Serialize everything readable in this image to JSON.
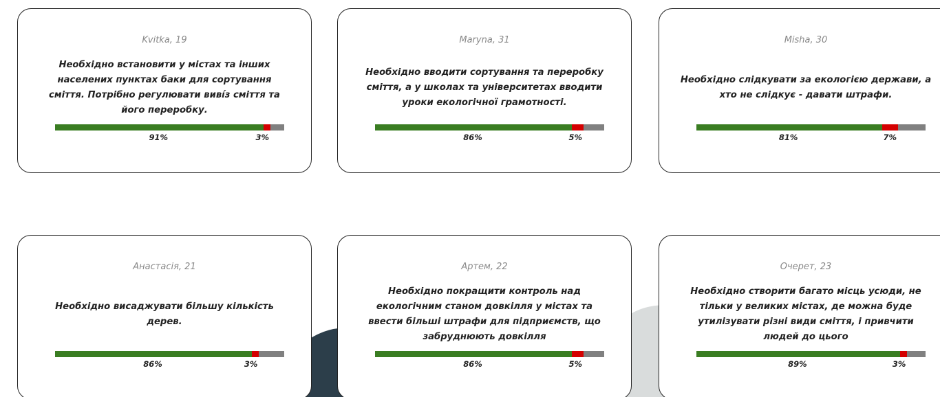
{
  "cards": [
    {
      "name": "Kvitka, 19",
      "quote": "Необхідно встановити у містах та інших населених пунктах баки для сортування сміття. Потрібно регулювати виві́з сміття та його переробку.",
      "agree": {
        "value": 91,
        "label": "91%"
      },
      "disagree": {
        "value": 3,
        "label": "3%"
      }
    },
    {
      "name": "Maryna, 31",
      "quote": "Необхідно вводити сортування та переробку сміття, а у школах та університетах вводити уроки екологічної грамотності.",
      "agree": {
        "value": 86,
        "label": "86%"
      },
      "disagree": {
        "value": 5,
        "label": "5%"
      }
    },
    {
      "name": "Misha, 30",
      "quote": "Необхідно слідкувати за екологією держави, а хто не слідкує - давати штрафи.",
      "agree": {
        "value": 81,
        "label": "81%"
      },
      "disagree": {
        "value": 7,
        "label": "7%"
      }
    },
    {
      "name": "Анастасія, 21",
      "quote": "Необхідно висаджувати більшу кількість дерев.",
      "agree": {
        "value": 86,
        "label": "86%"
      },
      "disagree": {
        "value": 3,
        "label": "3%"
      }
    },
    {
      "name": "Артем, 22",
      "quote": "Необхідно покращити контроль над екологічним станом довкілля у містах та ввести більші штрафи для підприємств, що забруднюють довкілля",
      "agree": {
        "value": 86,
        "label": "86%"
      },
      "disagree": {
        "value": 5,
        "label": "5%"
      }
    },
    {
      "name": "Очерет, 23",
      "quote": "Необхідно створити багато місць усюди, не тільки у великих містах, де можна буде утилізувати різні види сміття, і привчити людей до цього",
      "agree": {
        "value": 89,
        "label": "89%"
      },
      "disagree": {
        "value": 3,
        "label": "3%"
      }
    }
  ]
}
